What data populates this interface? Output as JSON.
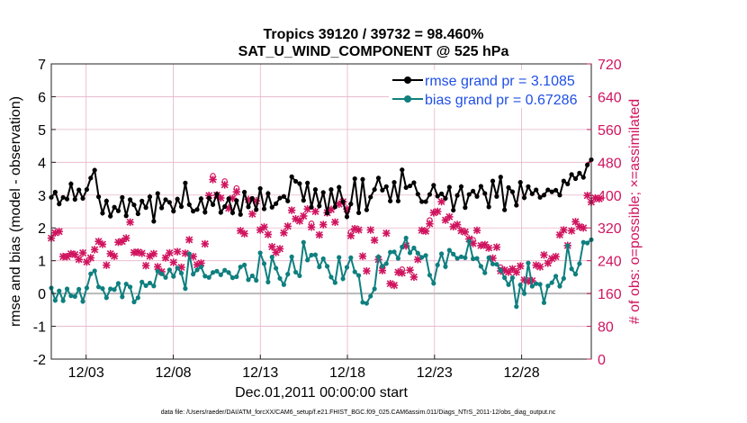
{
  "chart_data": {
    "type": "line",
    "title_line1": "Tropics 39120 / 39732 = 98.460%",
    "title_line2": "SAT_U_WIND_COMPONENT @ 525 hPa",
    "xlabel": "Dec.01,2011 00:00:00 start",
    "ylabel_left": "rmse and bias (model - observation)",
    "ylabel_right": "# of obs: o=possible; ×=assimilated",
    "x_tick_labels": [
      "12/03",
      "12/08",
      "12/13",
      "12/18",
      "12/23",
      "12/28"
    ],
    "x_ticks_day": [
      3,
      8,
      13,
      18,
      23,
      28
    ],
    "xlim_day": [
      1,
      32
    ],
    "ylim_left": [
      -2,
      7
    ],
    "y_ticks_left": [
      "-2",
      "-1",
      "0",
      "1",
      "2",
      "3",
      "4",
      "5",
      "6",
      "7"
    ],
    "ylim_right": [
      0,
      720
    ],
    "y_ticks_right": [
      "0",
      "80",
      "160",
      "240",
      "320",
      "400",
      "480",
      "560",
      "640",
      "720"
    ],
    "footnote": "data file: /Users/raeder/DAI/ATM_forcXX/CAM6_setup/f.e21.FHIST_BGC.f09_025.CAM6assim.011/Diags_NTrS_2011-12/obs_diag_output.nc",
    "legend": {
      "rmse_label": "rmse grand pr = 3.1085",
      "bias_label": "bias grand pr = 0.67286"
    },
    "colors": {
      "rmse": "#000000",
      "bias": "#0f7f7f",
      "obs": "#d0145f",
      "zero_line": "#b8b8b8",
      "grid": "#e6b3c8",
      "legend_text": "#1f4fe6"
    },
    "series": [
      {
        "name": "rmse",
        "values": [
          2.93,
          3.09,
          2.73,
          2.93,
          2.88,
          3.34,
          2.87,
          3.16,
          2.9,
          3.17,
          3.52,
          3.76,
          2.95,
          2.45,
          2.82,
          2.36,
          2.63,
          2.52,
          2.93,
          2.37,
          2.86,
          2.7,
          2.43,
          2.82,
          2.62,
          2.95,
          2.2,
          3.05,
          2.61,
          2.86,
          2.78,
          2.51,
          2.88,
          2.65,
          3.37,
          2.71,
          2.51,
          2.56,
          2.89,
          2.48,
          2.91,
          2.71,
          3.03,
          2.47,
          2.65,
          2.89,
          2.46,
          2.83,
          2.41,
          3.09,
          2.64,
          2.9,
          2.56,
          3.2,
          2.58,
          3.05,
          2.63,
          2.74,
          2.91,
          2.96,
          2.82,
          3.56,
          3.42,
          3.35,
          2.84,
          3.37,
          2.63,
          3.17,
          2.67,
          3.08,
          2.45,
          3.17,
          2.64,
          3.24,
          2.8,
          2.34,
          2.73,
          3.5,
          2.46,
          3.48,
          2.55,
          2.94,
          3.17,
          3.52,
          3.15,
          3.26,
          2.82,
          3.39,
          2.82,
          3.77,
          3.23,
          3.28,
          3.38,
          3.03,
          2.8,
          2.8,
          3.02,
          3.3,
          2.97,
          3.04,
          2.9,
          3.24,
          2.54,
          2.99,
          3.26,
          2.62,
          3.02,
          3.12,
          2.96,
          3.27,
          3.05,
          2.64,
          3.43,
          2.96,
          3.55,
          2.55,
          3.23,
          3.1,
          2.69,
          3.39,
          2.92,
          3.26,
          3.04,
          3.16,
          2.93,
          3.0,
          3.16,
          3.1,
          3.15,
          3.0,
          3.43,
          3.34,
          3.63,
          3.5,
          3.67,
          3.54,
          3.92,
          4.08
        ]
      },
      {
        "name": "bias",
        "values": [
          0.17,
          -0.21,
          0.08,
          -0.22,
          0.14,
          -0.07,
          -0.09,
          0.13,
          -0.24,
          0.17,
          0.6,
          0.69,
          0.2,
          0.15,
          -0.13,
          0.14,
          0.12,
          0.31,
          -0.1,
          0.29,
          0.2,
          -0.26,
          -0.13,
          0.35,
          0.24,
          0.32,
          0.23,
          0.68,
          0.6,
          0.49,
          0.72,
          0.52,
          0.78,
          0.62,
          0.15,
          1.21,
          0.59,
          0.72,
          0.81,
          0.53,
          0.49,
          0.64,
          0.68,
          0.57,
          0.71,
          0.64,
          0.48,
          0.51,
          0.81,
          0.87,
          0.42,
          0.54,
          0.4,
          1.24,
          0.91,
          0.35,
          1.11,
          0.77,
          0.46,
          0.27,
          0.59,
          1.12,
          0.65,
          0.54,
          1.56,
          1.02,
          1.17,
          1.18,
          0.81,
          1.06,
          0.83,
          0.5,
          0.33,
          1.1,
          0.45,
          0.8,
          1.09,
          0.66,
          0.55,
          -0.27,
          -0.3,
          -0.08,
          0.14,
          1.12,
          0.83,
          0.91,
          1.26,
          1.27,
          1.07,
          1.42,
          1.69,
          1.24,
          1.39,
          1.23,
          1.1,
          1.16,
          0.56,
          0.31,
          0.87,
          1.21,
          0.82,
          1.32,
          1.2,
          1.07,
          1.12,
          1.09,
          1.59,
          1.06,
          1.07,
          0.83,
          0.63,
          1.09,
          0.9,
          0.89,
          0.71,
          0.48,
          0.27,
          0.48,
          -0.4,
          0.26,
          0.0,
          0.93,
          0.22,
          0.3,
          0.28,
          -0.28,
          0.23,
          0.33,
          0.53,
          0.22,
          0.46,
          1.46,
          0.75,
          0.59,
          0.91,
          1.56,
          1.54,
          1.64
        ]
      },
      {
        "name": "obs_count",
        "values": [
          295,
          308,
          311,
          250,
          250,
          257,
          255,
          243,
          259,
          237,
          247,
          267,
          287,
          280,
          229,
          257,
          251,
          285,
          287,
          295,
          334,
          260,
          261,
          258,
          228,
          251,
          257,
          225,
          213,
          247,
          259,
          236,
          262,
          224,
          258,
          291,
          250,
          230,
          234,
          281,
          399,
          438,
          400,
          393,
          425,
          368,
          392,
          408,
          313,
          306,
          389,
          354,
          386,
          315,
          322,
          304,
          274,
          260,
          269,
          308,
          324,
          363,
          342,
          337,
          349,
          366,
          322,
          360,
          303,
          328,
          357,
          365,
          334,
          378,
          384,
          366,
          301,
          318,
          315,
          251,
          215,
          315,
          290,
          243,
          216,
          307,
          184,
          180,
          212,
          210,
          276,
          217,
          200,
          243,
          314,
          312,
          330,
          357,
          360,
          384,
          339,
          347,
          323,
          328,
          313,
          310,
          293,
          282,
          314,
          277,
          279,
          271,
          246,
          273,
          215,
          217,
          212,
          220,
          212,
          227,
          193,
          190,
          191,
          229,
          225,
          254,
          234,
          245,
          250,
          303,
          315,
          277,
          313,
          335,
          323,
          320,
          399,
          383,
          393,
          391
        ]
      }
    ]
  }
}
